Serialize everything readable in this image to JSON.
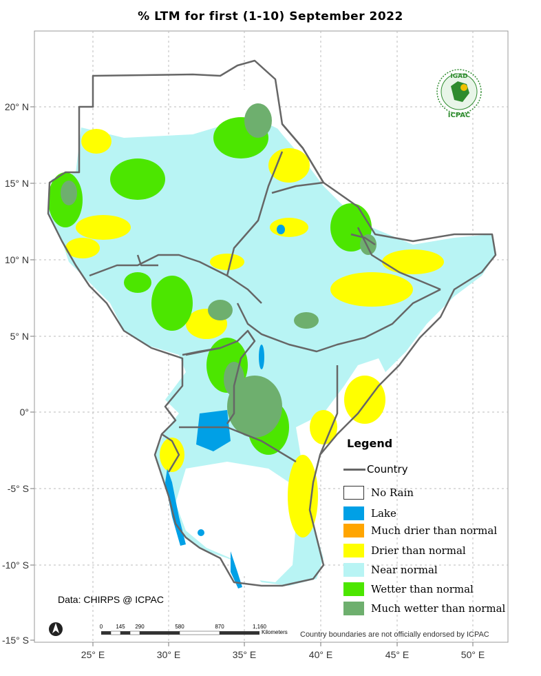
{
  "title": "% LTM  for  first (1-10)  September 2022",
  "latitude_labels": [
    "20° N",
    "15° N",
    "10° N",
    "5° N",
    "0°",
    "-5° S",
    "-10° S",
    "-15° S"
  ],
  "longitude_labels": [
    "25° E",
    "30° E",
    "35° E",
    "40° E",
    "45° E",
    "50° E"
  ],
  "legend": {
    "title": "Legend",
    "country_label": "Country",
    "items": [
      {
        "label": "No Rain",
        "color": "#ffffff"
      },
      {
        "label": "Lake",
        "color": "#00a0e6"
      },
      {
        "label": "Much drier than normal",
        "color": "#ffa500"
      },
      {
        "label": "Drier than normal",
        "color": "#ffff00"
      },
      {
        "label": "Near normal",
        "color": "#b8f4f4"
      },
      {
        "label": "Wetter than normal",
        "color": "#4ce600"
      },
      {
        "label": "Much wetter than normal",
        "color": "#6eaf6e"
      }
    ]
  },
  "scale_bar": {
    "ticks": [
      "0",
      "145",
      "290",
      "580",
      "870",
      "1,160"
    ],
    "unit": "Kilometers"
  },
  "source": "Data: CHIRPS @ ICPAC",
  "disclaimer": "Country boundaries are not officially endorsed by ICPAC",
  "logo": {
    "top_text": "IGAD",
    "bottom_text": "ICPAC"
  }
}
